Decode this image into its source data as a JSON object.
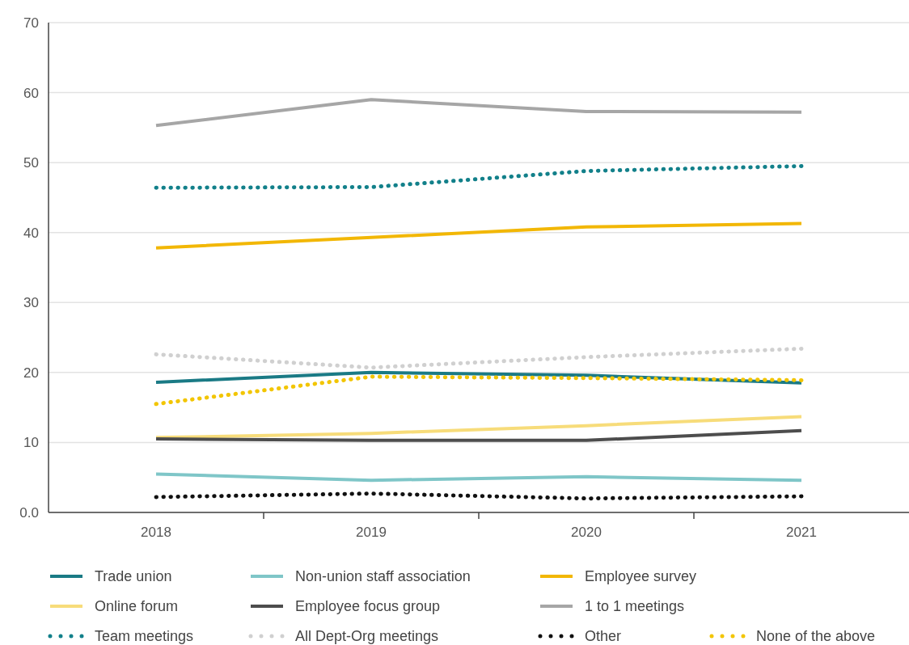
{
  "chart_data": {
    "type": "line",
    "categories": [
      "2018",
      "2019",
      "2020",
      "2021"
    ],
    "ylim": [
      0,
      70
    ],
    "yticks": [
      {
        "value": 0,
        "label": "0.0"
      },
      10,
      20,
      30,
      40,
      50,
      60,
      70
    ],
    "grid": "y",
    "legend": "bottom",
    "marker": "none",
    "series": [
      {
        "name": "Trade union",
        "color": "#1a7a85",
        "values": [
          18.6,
          20.0,
          19.6,
          18.5
        ]
      },
      {
        "name": "Non-union staff association",
        "color": "#7fc6c8",
        "values": [
          5.5,
          4.6,
          5.1,
          4.6
        ]
      },
      {
        "name": "Employee survey",
        "color": "#f2b705",
        "values": [
          37.8,
          39.3,
          40.8,
          41.3
        ]
      },
      {
        "name": "Online forum",
        "color": "#f7dc7a",
        "values": [
          10.7,
          11.3,
          12.4,
          13.7
        ]
      },
      {
        "name": "Employee focus group",
        "color": "#4d4d4d",
        "values": [
          10.5,
          10.3,
          10.3,
          11.7
        ]
      },
      {
        "name": "1 to 1 meetings",
        "color": "#a6a6a6",
        "values": [
          55.3,
          59.0,
          57.3,
          57.2
        ]
      },
      {
        "name": "Team meetings",
        "color": "#12808a",
        "line_style": "dotted",
        "values": [
          46.4,
          46.5,
          48.8,
          49.5
        ]
      },
      {
        "name": "All Dept-Org meetings",
        "color": "#d0d0d0",
        "line_style": "dotted",
        "values": [
          22.6,
          20.7,
          22.2,
          23.4
        ]
      },
      {
        "name": "Other",
        "color": "#111111",
        "line_style": "dotted",
        "values": [
          2.2,
          2.7,
          2.0,
          2.3
        ]
      },
      {
        "name": "None of the above",
        "color": "#f2c500",
        "line_style": "dotted",
        "values": [
          15.5,
          19.4,
          19.2,
          18.9
        ]
      }
    ]
  }
}
